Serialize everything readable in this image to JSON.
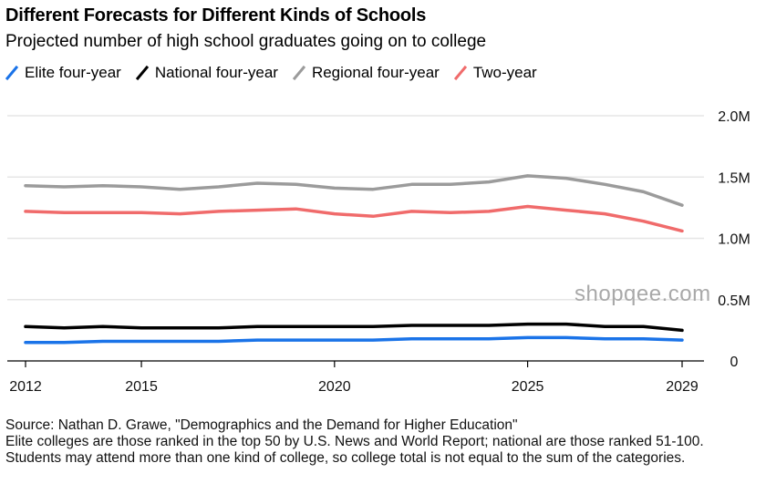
{
  "header": {
    "title": "Different Forecasts for Different Kinds of Schools",
    "subtitle": "Projected number of high school graduates going on to college"
  },
  "legend": [
    {
      "name": "Elite four-year",
      "color": "#1a73e8"
    },
    {
      "name": "National four-year",
      "color": "#000000"
    },
    {
      "name": "Regional four-year",
      "color": "#9b9b9b"
    },
    {
      "name": "Two-year",
      "color": "#f06b6b"
    }
  ],
  "chart_data": {
    "type": "line",
    "title": "Different Forecasts for Different Kinds of Schools",
    "subtitle": "Projected number of high school graduates going on to college",
    "xlabel": "",
    "ylabel": "",
    "x": [
      2012,
      2013,
      2014,
      2015,
      2016,
      2017,
      2018,
      2019,
      2020,
      2021,
      2022,
      2023,
      2024,
      2025,
      2026,
      2027,
      2028,
      2029
    ],
    "x_ticks": [
      "2012",
      "2015",
      "2020",
      "2025",
      "2029"
    ],
    "x_tick_values": [
      2012,
      2015,
      2020,
      2025,
      2029
    ],
    "y_ticks": [
      "0",
      "0.5M",
      "1.0M",
      "1.5M",
      "2.0M"
    ],
    "y_tick_values": [
      0,
      0.5,
      1.0,
      1.5,
      2.0
    ],
    "ylim": [
      0,
      2.0
    ],
    "xlim": [
      2011.8,
      2029.1
    ],
    "grid": true,
    "legend_position": "top-left",
    "series": [
      {
        "name": "Elite four-year",
        "color": "#1a73e8",
        "values": [
          0.15,
          0.15,
          0.16,
          0.16,
          0.16,
          0.16,
          0.17,
          0.17,
          0.17,
          0.17,
          0.18,
          0.18,
          0.18,
          0.19,
          0.19,
          0.18,
          0.18,
          0.17
        ]
      },
      {
        "name": "National four-year",
        "color": "#000000",
        "values": [
          0.28,
          0.27,
          0.28,
          0.27,
          0.27,
          0.27,
          0.28,
          0.28,
          0.28,
          0.28,
          0.29,
          0.29,
          0.29,
          0.3,
          0.3,
          0.28,
          0.28,
          0.25
        ]
      },
      {
        "name": "Regional four-year",
        "color": "#9b9b9b",
        "values": [
          1.43,
          1.42,
          1.43,
          1.42,
          1.4,
          1.42,
          1.45,
          1.44,
          1.41,
          1.4,
          1.44,
          1.44,
          1.46,
          1.51,
          1.49,
          1.44,
          1.38,
          1.27
        ]
      },
      {
        "name": "Two-year",
        "color": "#f06b6b",
        "values": [
          1.22,
          1.21,
          1.21,
          1.21,
          1.2,
          1.22,
          1.23,
          1.24,
          1.2,
          1.18,
          1.22,
          1.21,
          1.22,
          1.26,
          1.23,
          1.2,
          1.14,
          1.06
        ]
      }
    ]
  },
  "footer": {
    "source": "Source: Nathan D. Grawe, \"Demographics and the Demand for Higher Education\"",
    "note": "Elite colleges are those ranked in the top 50 by U.S. News and World Report; national are those ranked 51-100. Students may attend more than one kind of college, so college total is not equal to the sum of the categories."
  },
  "watermark": "shopqee.com"
}
